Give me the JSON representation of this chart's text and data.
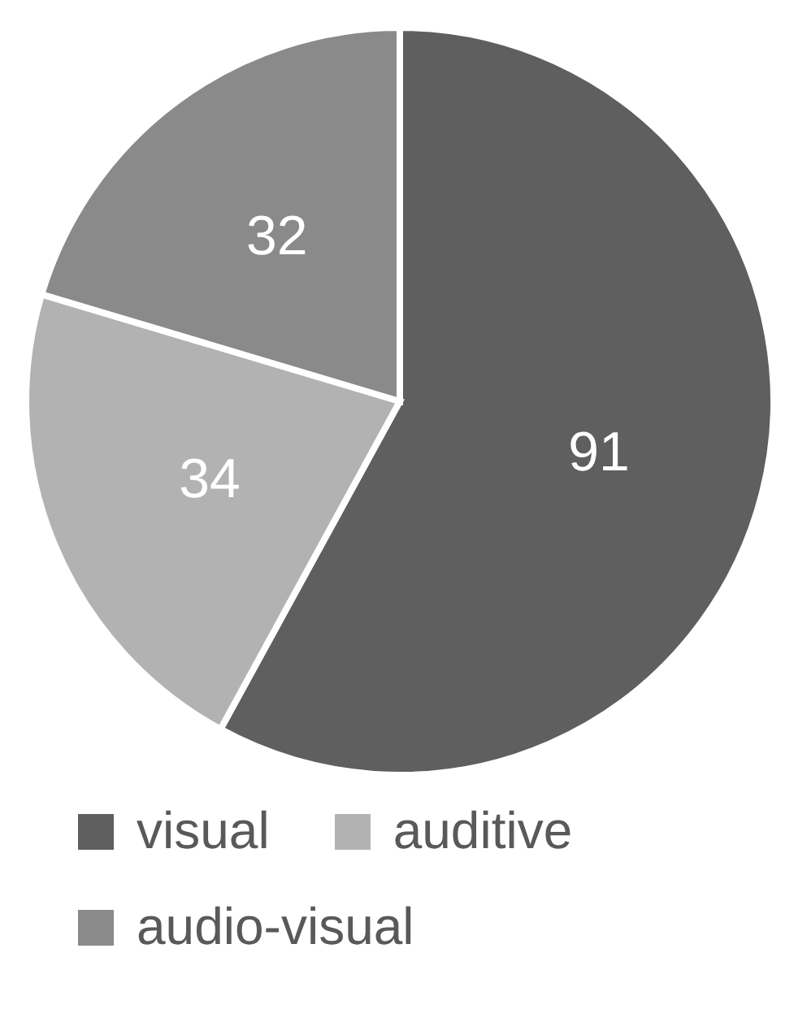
{
  "chart_data": {
    "type": "pie",
    "categories": [
      "visual",
      "auditive",
      "audio-visual"
    ],
    "values": [
      91,
      34,
      32
    ],
    "colors": [
      "#5f5f5f",
      "#b2b2b2",
      "#8a8a8a"
    ],
    "data_labels": true,
    "legend": "bottom"
  }
}
